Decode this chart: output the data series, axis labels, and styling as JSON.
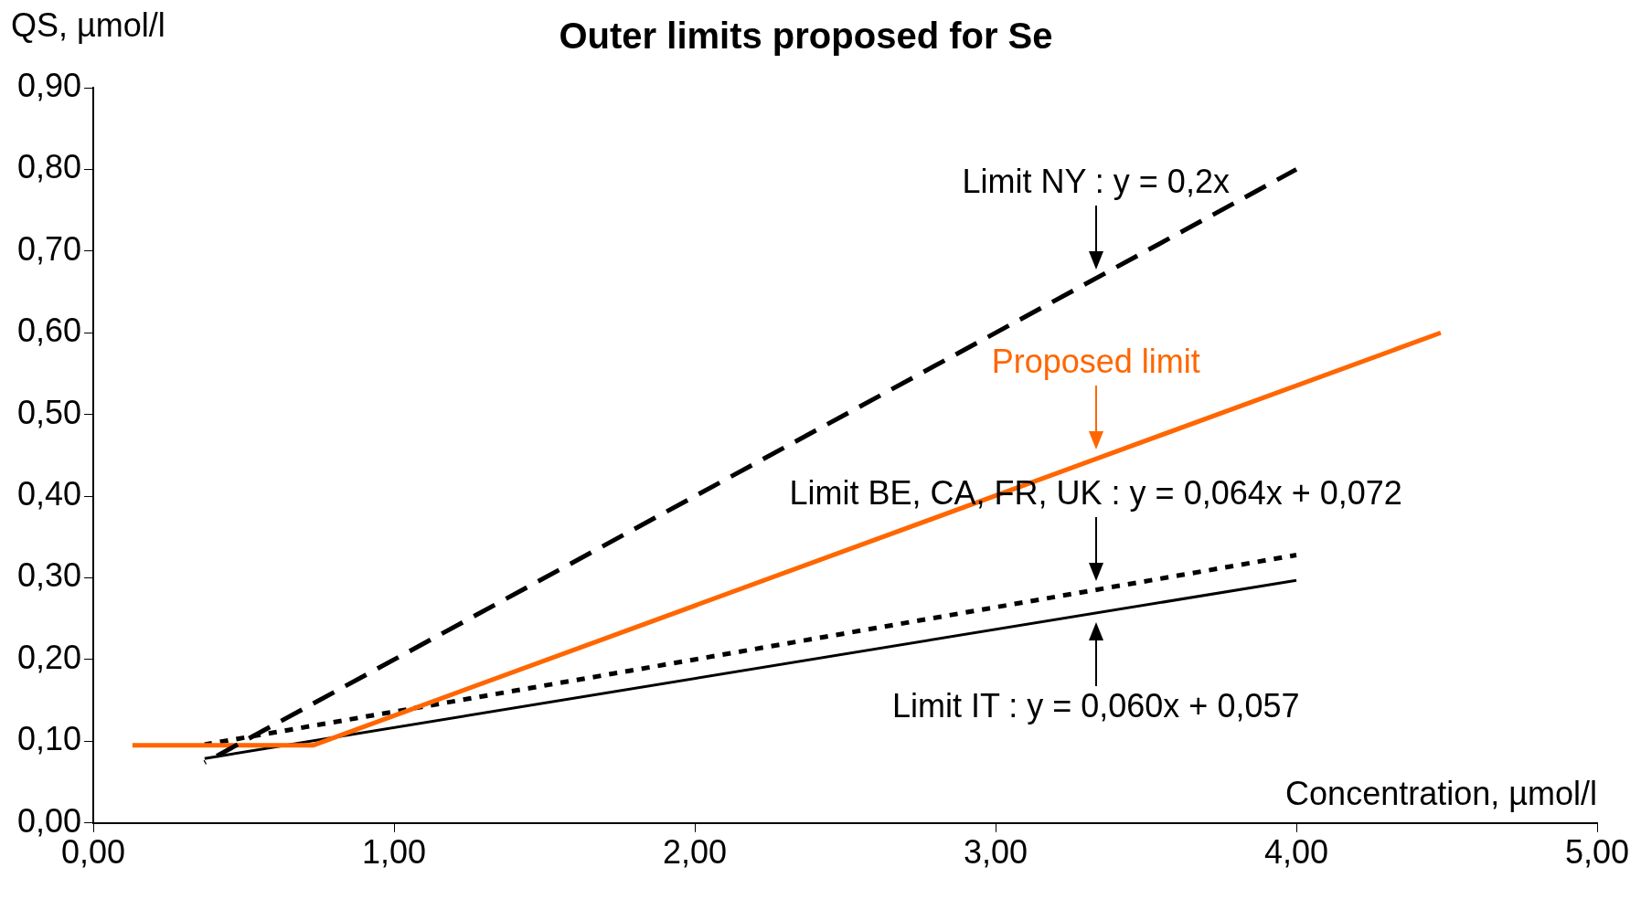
{
  "chart_data": {
    "type": "line",
    "title": "Outer limits proposed for Se",
    "xlabel": "Concentration, µmol/l",
    "ylabel": "QS, µmol/l",
    "xlim": [
      0,
      5
    ],
    "xticks": [
      {
        "value": 0,
        "label": "0,00"
      },
      {
        "value": 1,
        "label": "1,00"
      },
      {
        "value": 2,
        "label": "2,00"
      },
      {
        "value": 3,
        "label": "3,00"
      },
      {
        "value": 4,
        "label": "4,00"
      },
      {
        "value": 5,
        "label": "5,00"
      }
    ],
    "ylim": [
      0,
      0.9
    ],
    "yticks": [
      {
        "value": 0,
        "label": "0,00"
      },
      {
        "value": 0.1,
        "label": "0,10"
      },
      {
        "value": 0.2,
        "label": "0,20"
      },
      {
        "value": 0.3,
        "label": "0,30"
      },
      {
        "value": 0.4,
        "label": "0,40"
      },
      {
        "value": 0.5,
        "label": "0,50"
      },
      {
        "value": 0.6,
        "label": "0,60"
      },
      {
        "value": 0.7,
        "label": "0,70"
      },
      {
        "value": 0.8,
        "label": "0,80"
      },
      {
        "value": 0.9,
        "label": "0,90"
      }
    ],
    "grid": false,
    "legend": false,
    "marker": "none",
    "annotations": [
      "Limit NY : y = 0,2x",
      "Proposed limit",
      "Limit BE, CA, FR, UK : y = 0,064x + 0,072",
      "Limit IT : y = 0,060x + 0,057"
    ],
    "series": [
      {
        "color": "#000000",
        "line_style": "dashed",
        "x": [
          0.37,
          4.0
        ],
        "values": [
          0.074,
          0.8
        ]
      },
      {
        "color": "#ff6600",
        "line_style": "solid",
        "x": [
          0.13,
          0.73,
          4.48
        ],
        "values": [
          0.095,
          0.095,
          0.6
        ]
      },
      {
        "color": "#000000",
        "line_style": "dotted",
        "x": [
          0.37,
          4.0
        ],
        "values": [
          0.096,
          0.328
        ]
      },
      {
        "color": "#000000",
        "line_style": "solid",
        "x": [
          0.37,
          4.0
        ],
        "values": [
          0.079,
          0.297
        ]
      }
    ]
  }
}
